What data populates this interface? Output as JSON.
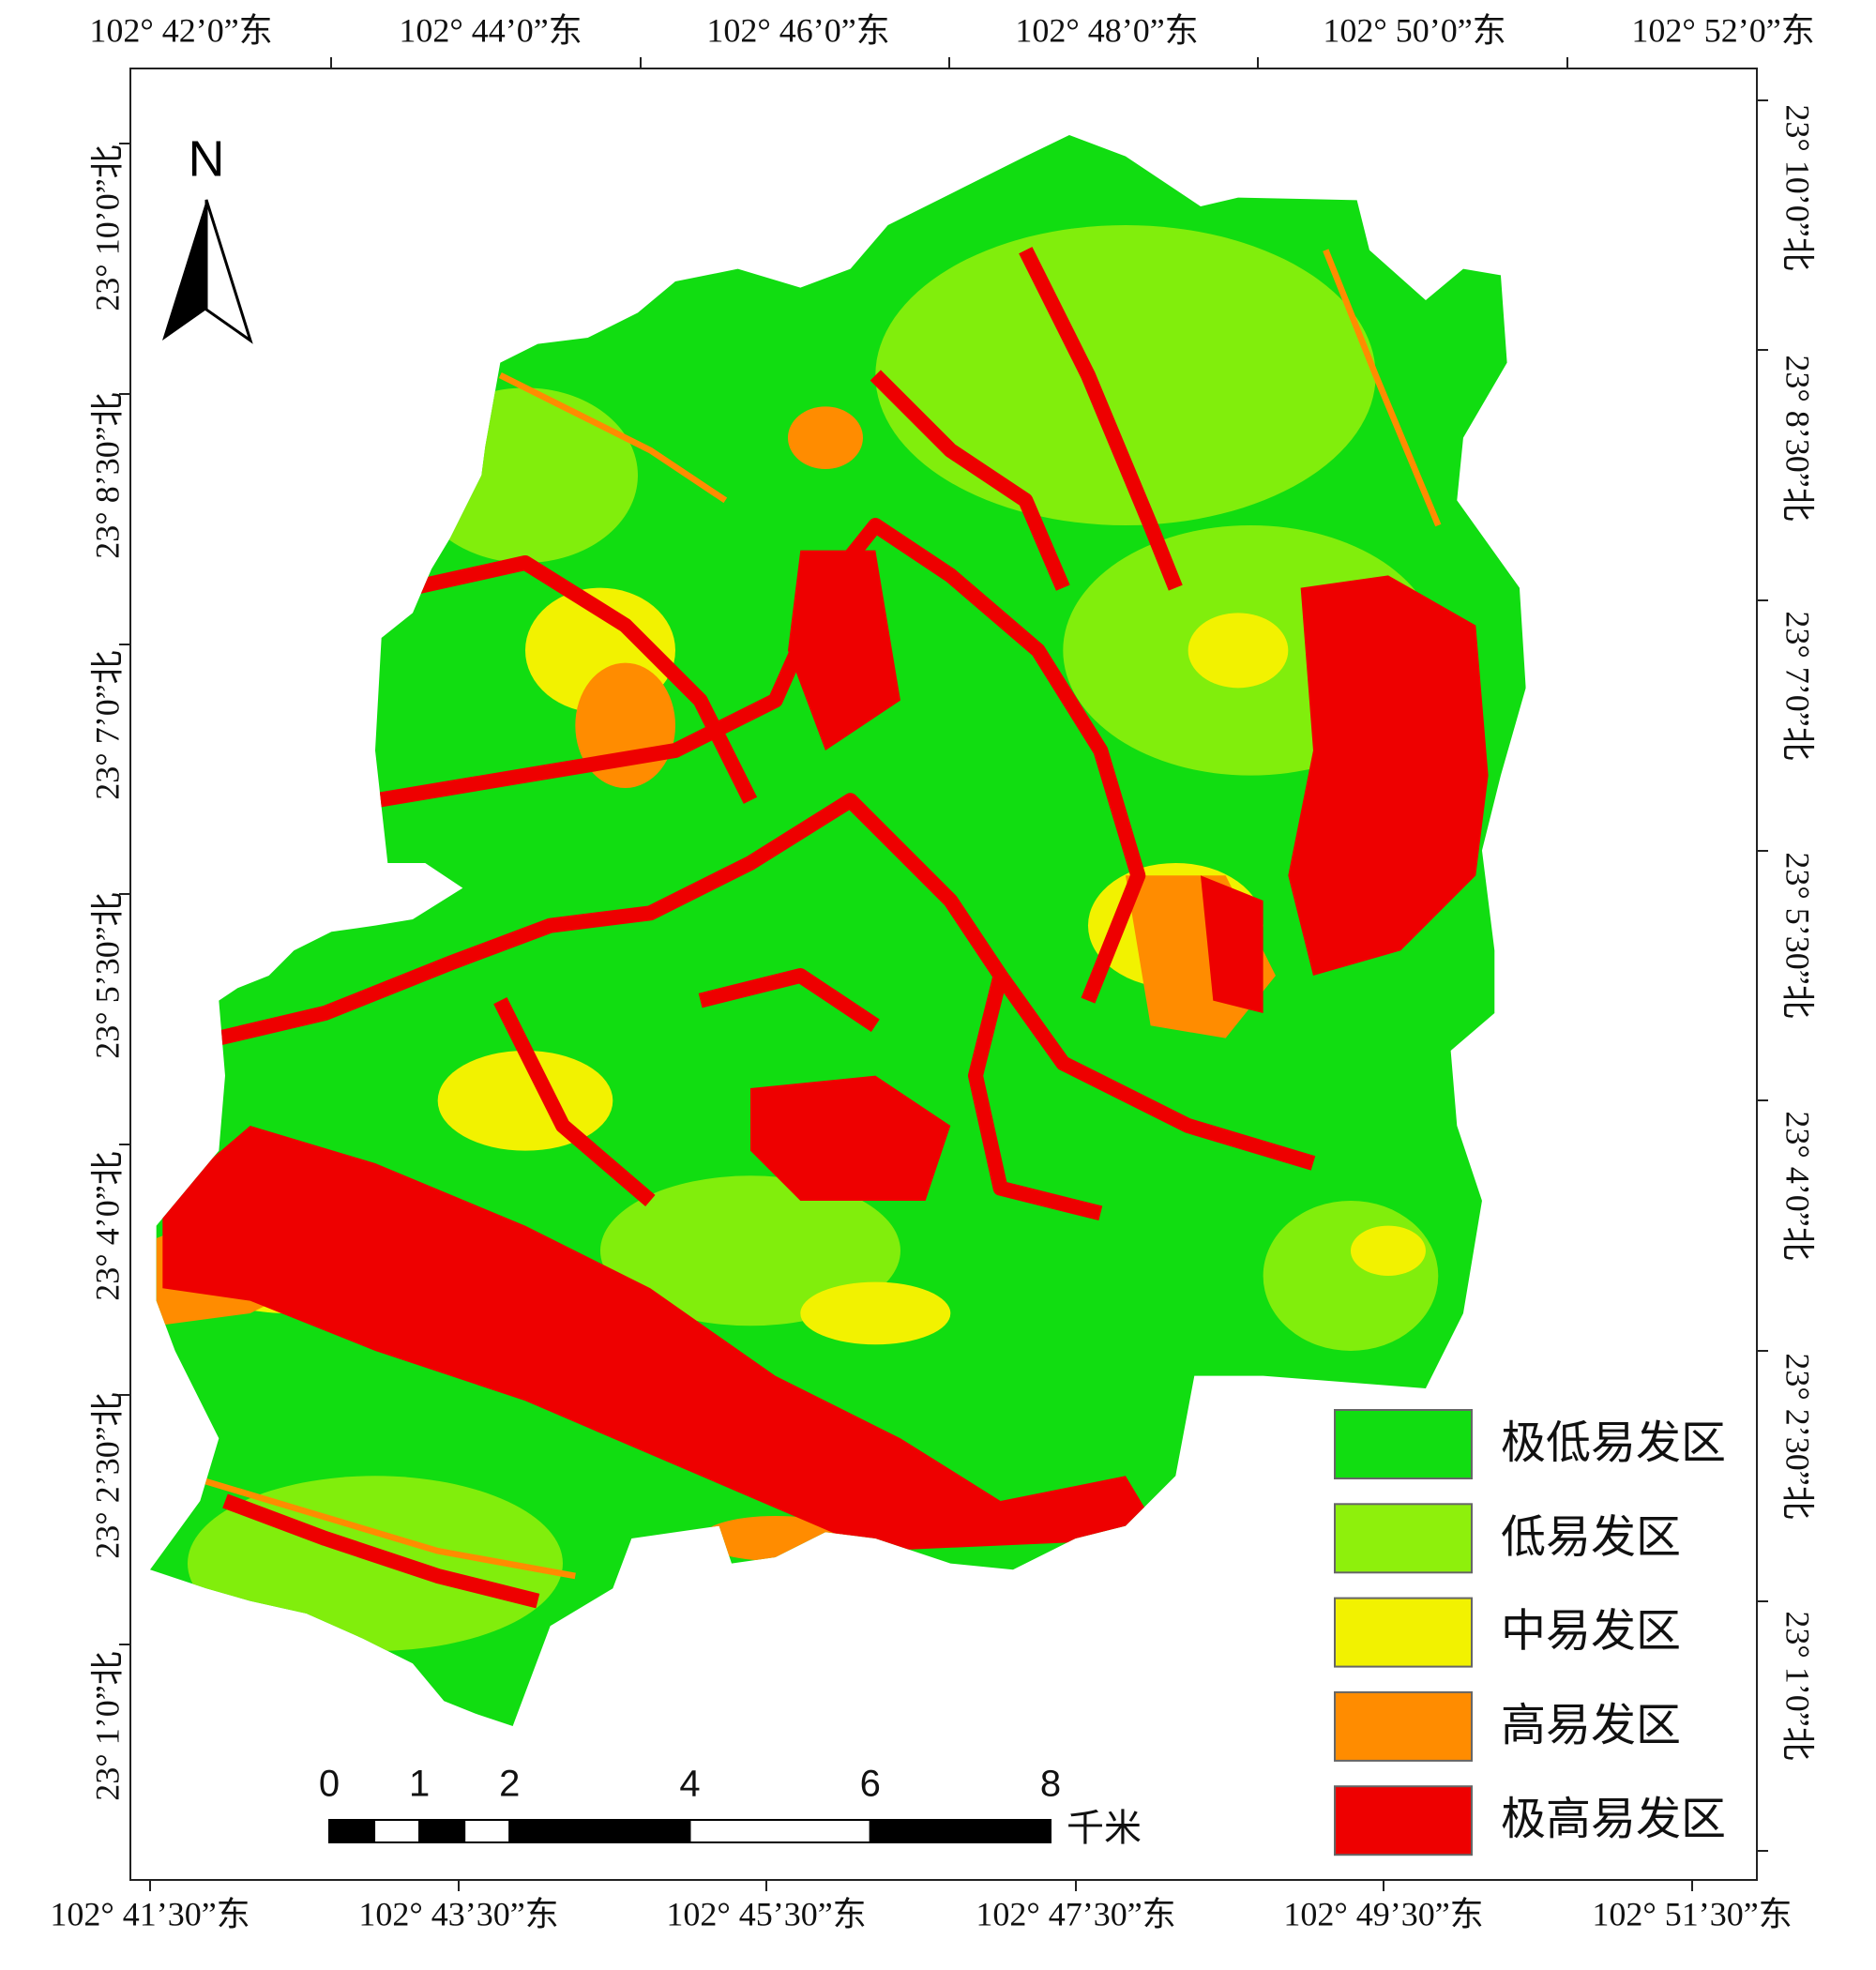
{
  "north": "N",
  "top_labels": [
    "102° 42’0”东",
    "102° 44’0”东",
    "102° 46’0”东",
    "102° 48’0”东",
    "102° 50’0”东",
    "102° 52’0”东"
  ],
  "bottom_labels": [
    "102° 41’30”东",
    "102° 43’30”东",
    "102° 45’30”东",
    "102° 47’30”东",
    "102° 49’30”东",
    "102° 51’30”东"
  ],
  "left_labels": [
    "23° 10’0”北",
    "23° 8’30”北",
    "23° 7’0”北",
    "23° 5’30”北",
    "23° 4’0”北",
    "23° 2’30”北",
    "23° 1’0”北"
  ],
  "right_labels": [
    "23° 10’0”北",
    "23° 8’30”北",
    "23° 7’0”北",
    "23° 5’30”北",
    "23° 4’0”北",
    "23° 2’30”北",
    "23° 1’0”北"
  ],
  "legend": [
    {
      "label": "极低易发区",
      "color": "#11dd11"
    },
    {
      "label": "低易发区",
      "color": "#8ef00c"
    },
    {
      "label": "中易发区",
      "color": "#f2f200"
    },
    {
      "label": "高易发区",
      "color": "#ff8c00"
    },
    {
      "label": "极高易发区",
      "color": "#ee0000"
    }
  ],
  "scale_bar": {
    "ticks": [
      0,
      1,
      2,
      4,
      6,
      8
    ],
    "unit": "千米"
  }
}
